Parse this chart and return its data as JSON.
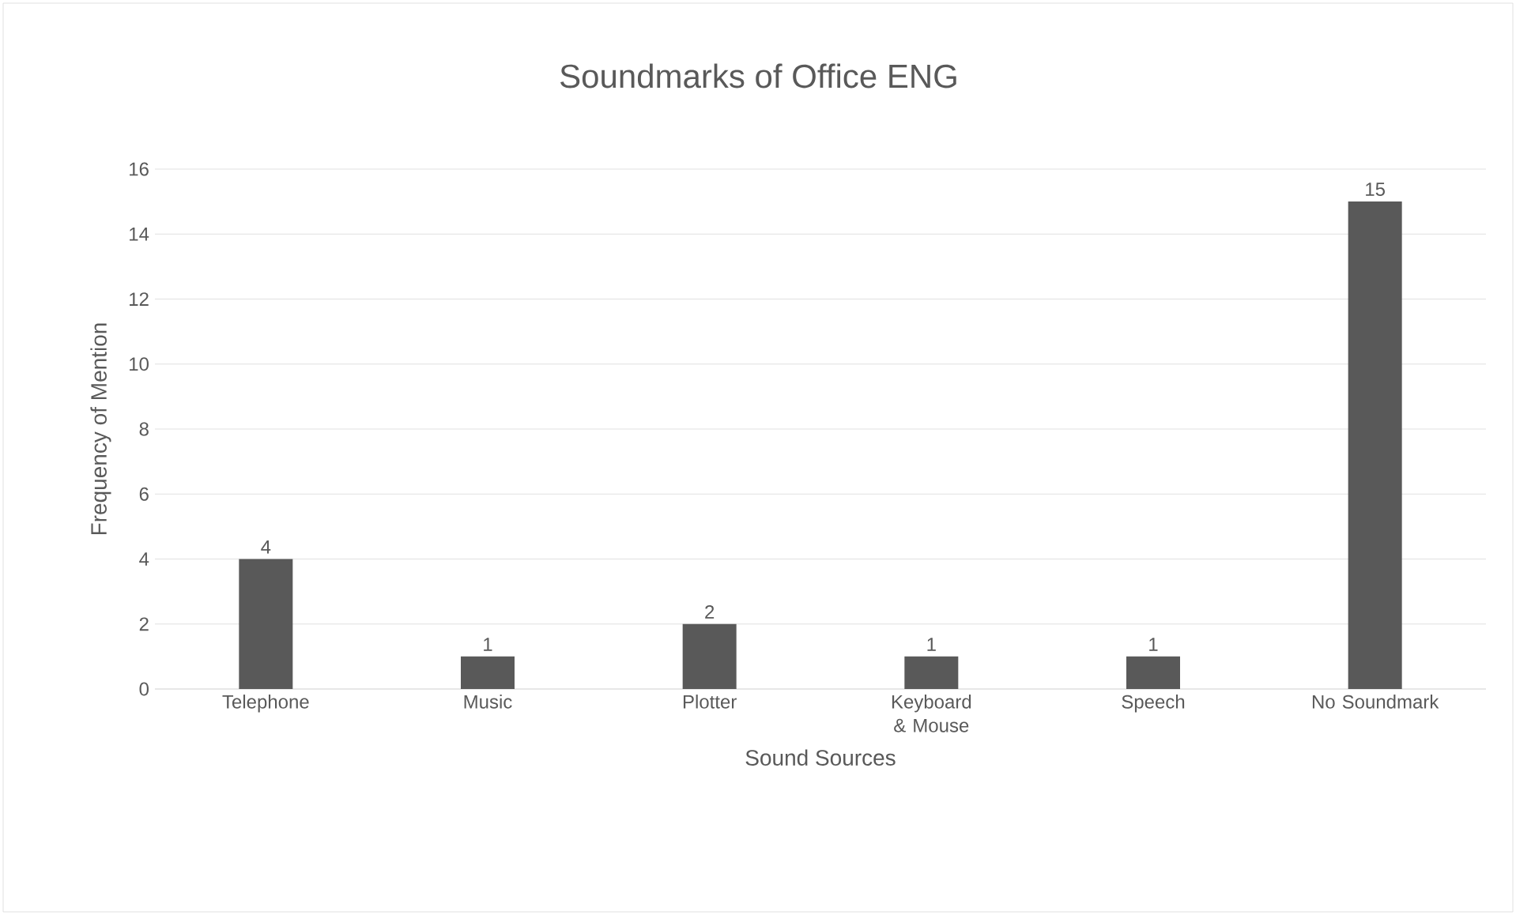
{
  "chart_data": {
    "type": "bar",
    "title": "Soundmarks of Office ENG",
    "xlabel": "Sound Sources",
    "ylabel": "Frequency of Mention",
    "categories": [
      "Telephone",
      "Music",
      "Plotter",
      "Keyboard & Mouse",
      "Speech",
      "No Soundmark"
    ],
    "values": [
      4,
      1,
      2,
      1,
      1,
      15
    ],
    "color": "#595959",
    "ylim": [
      0,
      16
    ],
    "yticks": [
      0,
      2,
      4,
      6,
      8,
      10,
      12,
      14,
      16
    ],
    "grid": "y",
    "data_labels": true
  }
}
